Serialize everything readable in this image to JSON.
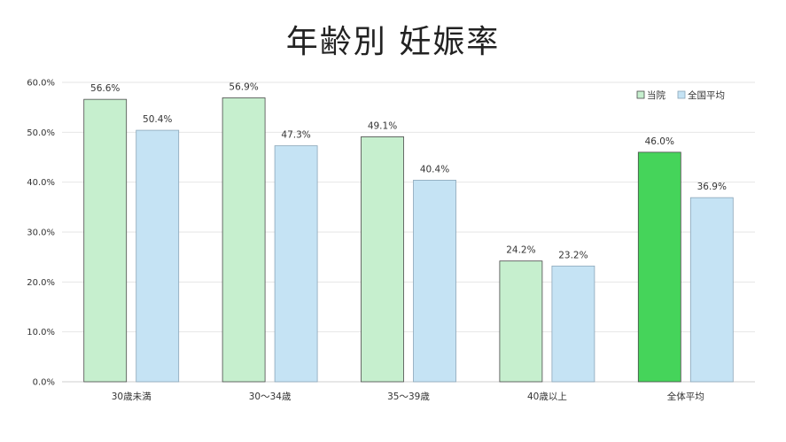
{
  "chart_data": {
    "type": "bar",
    "title": "年齢別 妊娠率",
    "categories": [
      "30歳未満",
      "30〜34歳",
      "35〜39歳",
      "40歳以上",
      "全体平均"
    ],
    "series": [
      {
        "name": "当院",
        "values": [
          56.6,
          56.9,
          49.1,
          24.2,
          46.0
        ],
        "labels": [
          "56.6%",
          "56.9%",
          "49.1%",
          "24.2%",
          "46.0%"
        ],
        "color": "#c6efce",
        "highlight_color": "#45d45a",
        "highlight_index": 4
      },
      {
        "name": "全国平均",
        "values": [
          50.4,
          47.3,
          40.4,
          23.2,
          36.9
        ],
        "labels": [
          "50.4%",
          "47.3%",
          "40.4%",
          "23.2%",
          "36.9%"
        ],
        "color": "#c5e3f4"
      }
    ],
    "ylim": [
      0,
      60
    ],
    "yticks": [
      "0.0%",
      "10.0%",
      "20.0%",
      "30.0%",
      "40.0%",
      "50.0%",
      "60.0%"
    ],
    "grid": true,
    "legend_position": "top-right"
  }
}
